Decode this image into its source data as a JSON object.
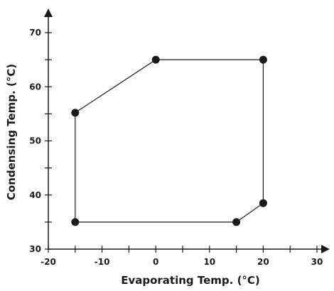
{
  "chart_data": {
    "type": "line",
    "title": "",
    "xlabel": "Evaporating Temp. (°C)",
    "ylabel": "Condensing Temp. (°C)",
    "xlim": [
      -20,
      30
    ],
    "ylim": [
      30,
      70
    ],
    "x_ticks": [
      -20,
      -10,
      0,
      10,
      20,
      30
    ],
    "y_ticks": [
      30,
      40,
      50,
      60,
      70
    ],
    "grid": false,
    "closed": true,
    "series": [
      {
        "x": [
          -15,
          0,
          20,
          20,
          15,
          -15
        ],
        "y": [
          55.2,
          65,
          65,
          38.5,
          35,
          35
        ]
      }
    ],
    "line_color": "#1a1a1a",
    "marker_color": "#1a1a1a"
  }
}
